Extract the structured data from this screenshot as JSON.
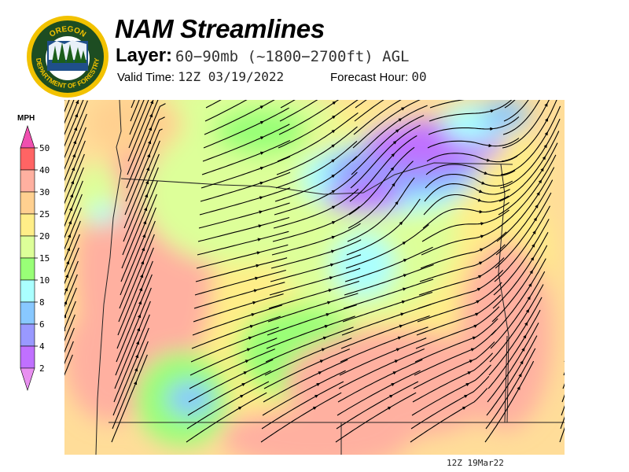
{
  "header": {
    "title": "NAM Streamlines",
    "layer_label": "Layer:",
    "layer_value": "60−90mb (~1800−2700ft) AGL",
    "valid_label": "Valid Time:",
    "valid_value": "12Z 03/19/2022",
    "forecast_label": "Forecast Hour:",
    "forecast_value": "00"
  },
  "logo": {
    "text_top": "OREGON",
    "text_bottom": "DEPARTMENT OF FORESTRY"
  },
  "legend": {
    "units": "MPH",
    "bands": [
      {
        "label": "50",
        "color": "#ff6464"
      },
      {
        "label": "40",
        "color": "#ffb0a0"
      },
      {
        "label": "30",
        "color": "#ffd090"
      },
      {
        "label": "25",
        "color": "#ffee88"
      },
      {
        "label": "20",
        "color": "#ddff99"
      },
      {
        "label": "15",
        "color": "#99ff77"
      },
      {
        "label": "10",
        "color": "#aaffff"
      },
      {
        "label": "8",
        "color": "#88c8ff"
      },
      {
        "label": "6",
        "color": "#9999ff"
      },
      {
        "label": "4",
        "color": "#c070ff"
      }
    ],
    "bottom_label": "2",
    "over_color": "#f050b0",
    "under_color": "#e890f0"
  },
  "footer": {
    "timestamp": "12Z 19Mar22"
  }
}
